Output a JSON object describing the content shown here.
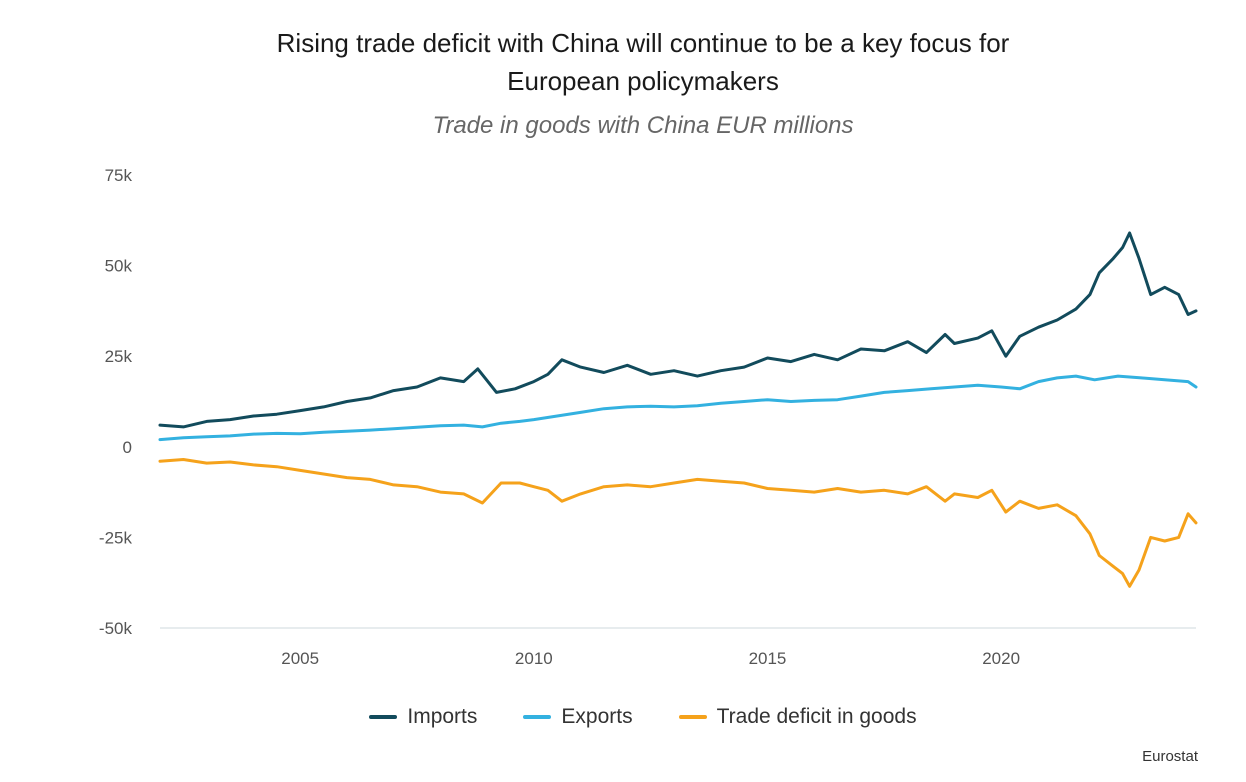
{
  "chart_data": {
    "type": "line",
    "title_line1": "Rising trade deficit with China will continue to be a key focus for",
    "title_line2": "European policymakers",
    "subtitle": "Trade in goods with China EUR millions",
    "source": "Eurostat",
    "x_range": [
      2002.0,
      2024.17
    ],
    "ylim": [
      -50000,
      75000
    ],
    "y_ticks": [
      {
        "value": 75000,
        "label": "75k"
      },
      {
        "value": 50000,
        "label": "50k"
      },
      {
        "value": 25000,
        "label": "25k"
      },
      {
        "value": 0,
        "label": "0"
      },
      {
        "value": -25000,
        "label": "-25k"
      },
      {
        "value": -50000,
        "label": "-50k"
      }
    ],
    "x_ticks": [
      {
        "value": 2005,
        "label": "2005"
      },
      {
        "value": 2010,
        "label": "2010"
      },
      {
        "value": 2015,
        "label": "2015"
      },
      {
        "value": 2020,
        "label": "2020"
      }
    ],
    "series": [
      {
        "name": "Imports",
        "color": "#124b5c",
        "points": [
          [
            2002.0,
            6000
          ],
          [
            2002.5,
            5500
          ],
          [
            2003.0,
            7000
          ],
          [
            2003.5,
            7500
          ],
          [
            2004.0,
            8500
          ],
          [
            2004.5,
            9000
          ],
          [
            2005.0,
            10000
          ],
          [
            2005.5,
            11000
          ],
          [
            2006.0,
            12500
          ],
          [
            2006.5,
            13500
          ],
          [
            2007.0,
            15500
          ],
          [
            2007.5,
            16500
          ],
          [
            2008.0,
            19000
          ],
          [
            2008.5,
            18000
          ],
          [
            2008.8,
            21500
          ],
          [
            2009.2,
            15000
          ],
          [
            2009.6,
            16000
          ],
          [
            2010.0,
            18000
          ],
          [
            2010.3,
            20000
          ],
          [
            2010.6,
            24000
          ],
          [
            2011.0,
            22000
          ],
          [
            2011.5,
            20500
          ],
          [
            2012.0,
            22500
          ],
          [
            2012.5,
            20000
          ],
          [
            2013.0,
            21000
          ],
          [
            2013.5,
            19500
          ],
          [
            2014.0,
            21000
          ],
          [
            2014.5,
            22000
          ],
          [
            2015.0,
            24500
          ],
          [
            2015.5,
            23500
          ],
          [
            2016.0,
            25500
          ],
          [
            2016.5,
            24000
          ],
          [
            2017.0,
            27000
          ],
          [
            2017.5,
            26500
          ],
          [
            2018.0,
            29000
          ],
          [
            2018.4,
            26000
          ],
          [
            2018.8,
            31000
          ],
          [
            2019.0,
            28500
          ],
          [
            2019.5,
            30000
          ],
          [
            2019.8,
            32000
          ],
          [
            2020.1,
            25000
          ],
          [
            2020.4,
            30500
          ],
          [
            2020.8,
            33000
          ],
          [
            2021.2,
            35000
          ],
          [
            2021.6,
            38000
          ],
          [
            2021.9,
            42000
          ],
          [
            2022.1,
            48000
          ],
          [
            2022.4,
            52000
          ],
          [
            2022.6,
            55000
          ],
          [
            2022.75,
            59000
          ],
          [
            2022.95,
            52000
          ],
          [
            2023.2,
            42000
          ],
          [
            2023.5,
            44000
          ],
          [
            2023.8,
            42000
          ],
          [
            2024.0,
            36500
          ],
          [
            2024.17,
            37500
          ]
        ]
      },
      {
        "name": "Exports",
        "color": "#33b1e0",
        "points": [
          [
            2002.0,
            2000
          ],
          [
            2002.5,
            2500
          ],
          [
            2003.0,
            2800
          ],
          [
            2003.5,
            3000
          ],
          [
            2004.0,
            3500
          ],
          [
            2004.5,
            3700
          ],
          [
            2005.0,
            3600
          ],
          [
            2005.5,
            4000
          ],
          [
            2006.0,
            4300
          ],
          [
            2006.5,
            4600
          ],
          [
            2007.0,
            5000
          ],
          [
            2007.5,
            5400
          ],
          [
            2008.0,
            5800
          ],
          [
            2008.5,
            6000
          ],
          [
            2008.9,
            5500
          ],
          [
            2009.3,
            6500
          ],
          [
            2009.7,
            7000
          ],
          [
            2010.0,
            7500
          ],
          [
            2010.5,
            8500
          ],
          [
            2011.0,
            9500
          ],
          [
            2011.5,
            10500
          ],
          [
            2012.0,
            11000
          ],
          [
            2012.5,
            11200
          ],
          [
            2013.0,
            11000
          ],
          [
            2013.5,
            11300
          ],
          [
            2014.0,
            12000
          ],
          [
            2014.5,
            12500
          ],
          [
            2015.0,
            13000
          ],
          [
            2015.5,
            12500
          ],
          [
            2016.0,
            12800
          ],
          [
            2016.5,
            13000
          ],
          [
            2017.0,
            14000
          ],
          [
            2017.5,
            15000
          ],
          [
            2018.0,
            15500
          ],
          [
            2018.5,
            16000
          ],
          [
            2019.0,
            16500
          ],
          [
            2019.5,
            17000
          ],
          [
            2020.0,
            16500
          ],
          [
            2020.4,
            16000
          ],
          [
            2020.8,
            18000
          ],
          [
            2021.2,
            19000
          ],
          [
            2021.6,
            19500
          ],
          [
            2022.0,
            18500
          ],
          [
            2022.5,
            19500
          ],
          [
            2023.0,
            19000
          ],
          [
            2023.5,
            18500
          ],
          [
            2024.0,
            18000
          ],
          [
            2024.17,
            16500
          ]
        ]
      },
      {
        "name": "Trade deficit in goods",
        "color": "#f5a21b",
        "points": [
          [
            2002.0,
            -4000
          ],
          [
            2002.5,
            -3500
          ],
          [
            2003.0,
            -4500
          ],
          [
            2003.5,
            -4200
          ],
          [
            2004.0,
            -5000
          ],
          [
            2004.5,
            -5500
          ],
          [
            2005.0,
            -6500
          ],
          [
            2005.5,
            -7500
          ],
          [
            2006.0,
            -8500
          ],
          [
            2006.5,
            -9000
          ],
          [
            2007.0,
            -10500
          ],
          [
            2007.5,
            -11000
          ],
          [
            2008.0,
            -12500
          ],
          [
            2008.5,
            -13000
          ],
          [
            2008.9,
            -15500
          ],
          [
            2009.3,
            -10000
          ],
          [
            2009.7,
            -10000
          ],
          [
            2010.0,
            -11000
          ],
          [
            2010.3,
            -12000
          ],
          [
            2010.6,
            -15000
          ],
          [
            2011.0,
            -13000
          ],
          [
            2011.5,
            -11000
          ],
          [
            2012.0,
            -10500
          ],
          [
            2012.5,
            -11000
          ],
          [
            2013.0,
            -10000
          ],
          [
            2013.5,
            -9000
          ],
          [
            2014.0,
            -9500
          ],
          [
            2014.5,
            -10000
          ],
          [
            2015.0,
            -11500
          ],
          [
            2015.5,
            -12000
          ],
          [
            2016.0,
            -12500
          ],
          [
            2016.5,
            -11500
          ],
          [
            2017.0,
            -12500
          ],
          [
            2017.5,
            -12000
          ],
          [
            2018.0,
            -13000
          ],
          [
            2018.4,
            -11000
          ],
          [
            2018.8,
            -15000
          ],
          [
            2019.0,
            -13000
          ],
          [
            2019.5,
            -14000
          ],
          [
            2019.8,
            -12000
          ],
          [
            2020.1,
            -18000
          ],
          [
            2020.4,
            -15000
          ],
          [
            2020.8,
            -17000
          ],
          [
            2021.2,
            -16000
          ],
          [
            2021.6,
            -19000
          ],
          [
            2021.9,
            -24000
          ],
          [
            2022.1,
            -30000
          ],
          [
            2022.4,
            -33000
          ],
          [
            2022.6,
            -35000
          ],
          [
            2022.75,
            -38500
          ],
          [
            2022.95,
            -34000
          ],
          [
            2023.2,
            -25000
          ],
          [
            2023.5,
            -26000
          ],
          [
            2023.8,
            -25000
          ],
          [
            2024.0,
            -18500
          ],
          [
            2024.17,
            -21000
          ]
        ]
      }
    ]
  }
}
